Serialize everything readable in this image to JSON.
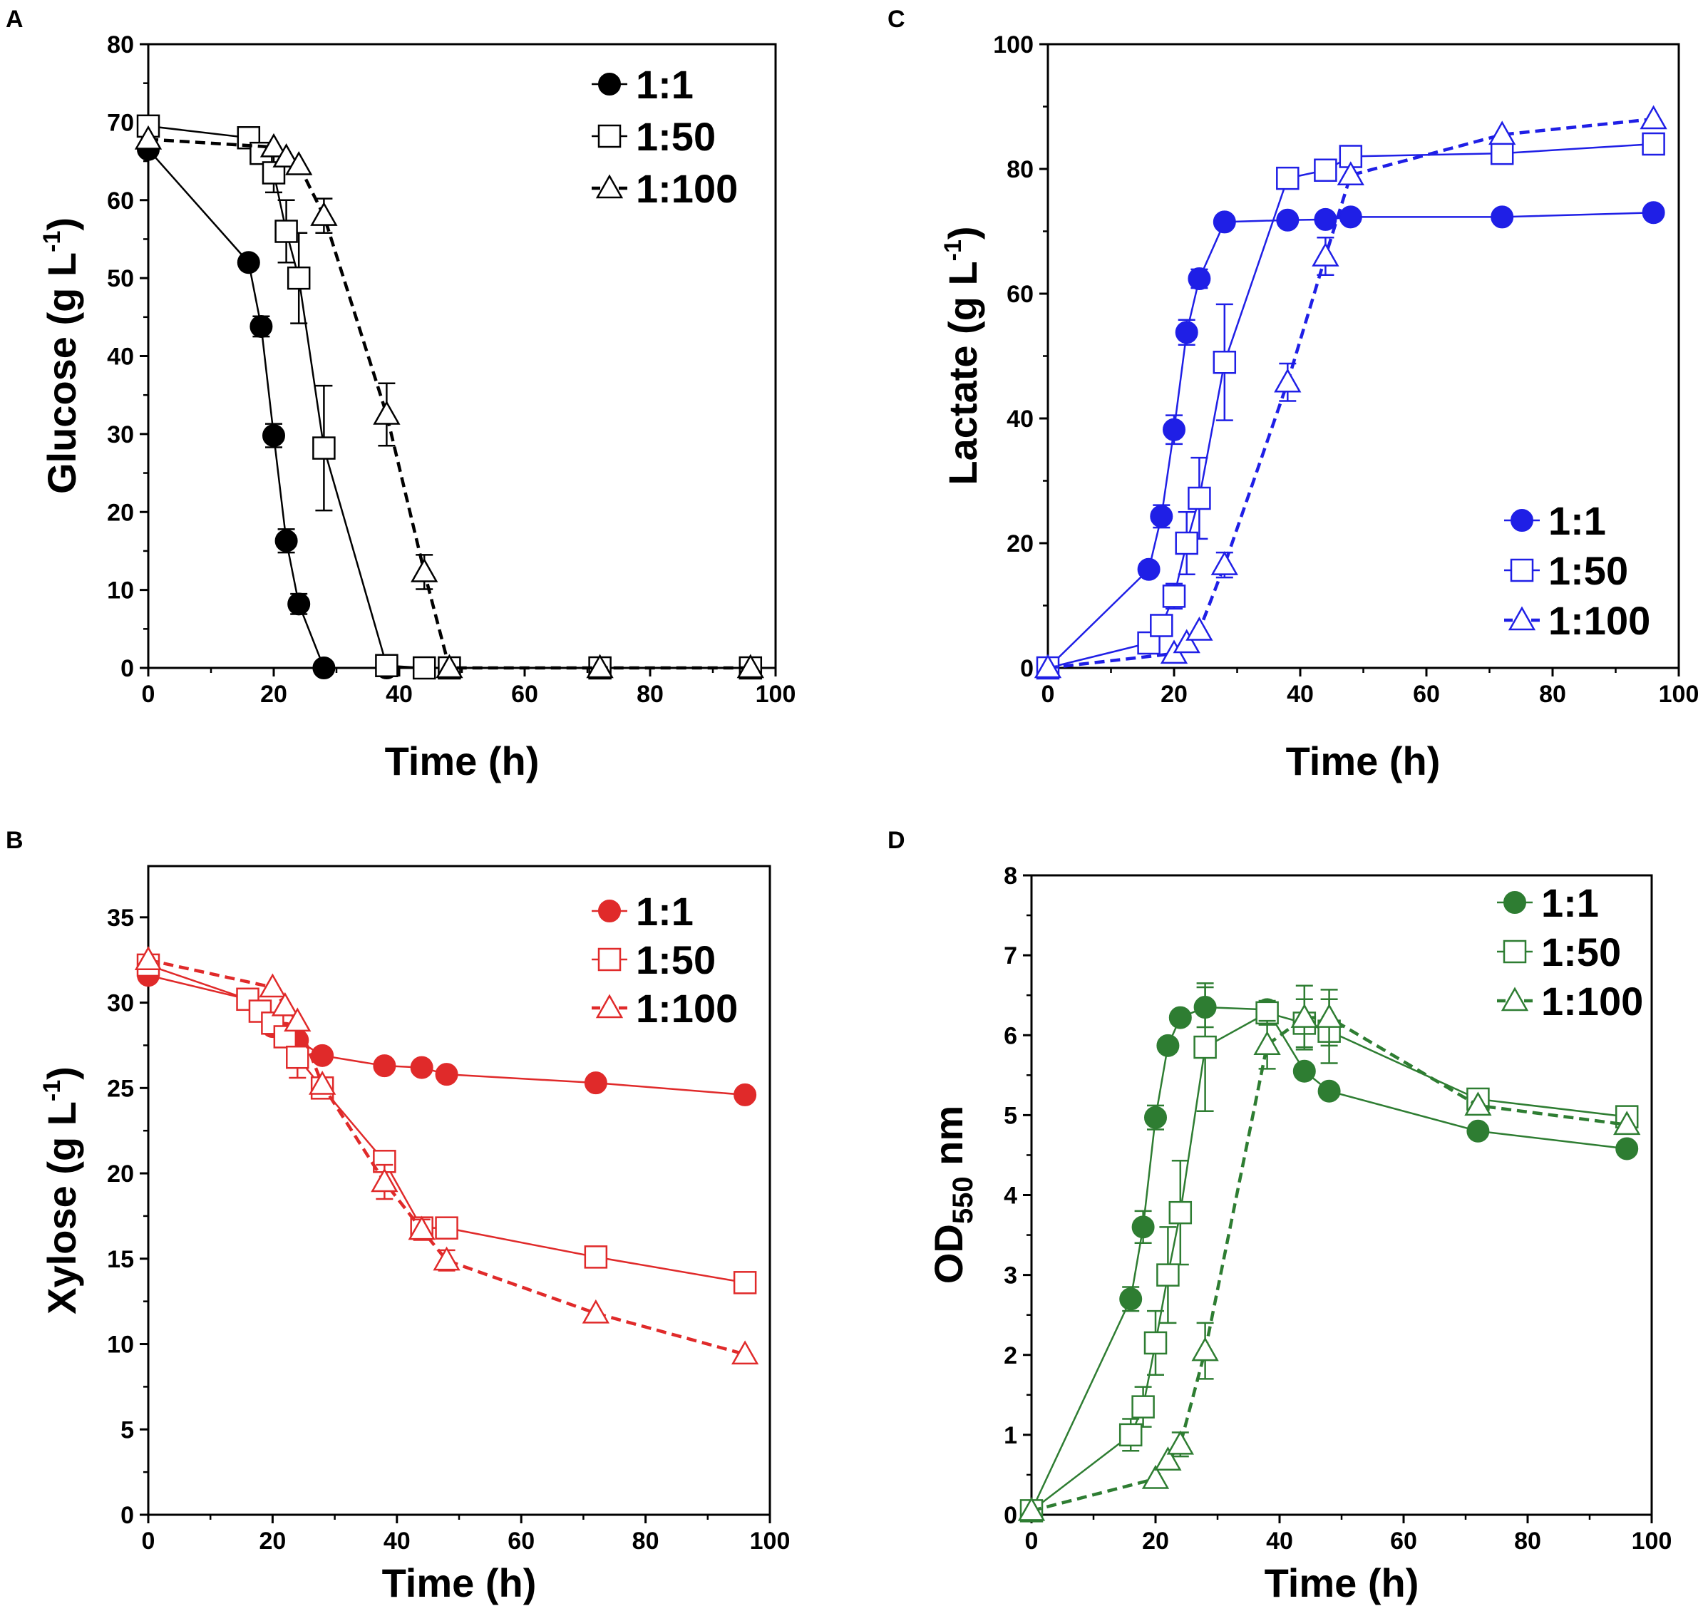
{
  "chart_data": [
    {
      "panel": "A",
      "type": "line",
      "xlabel": "Time (h)",
      "ylabel": "Glucose (g L",
      "ylabel_sup": "-1",
      "ylabel_end": ")",
      "xlim": [
        0,
        100
      ],
      "ylim": [
        0,
        80
      ],
      "xticks": [
        0,
        20,
        40,
        60,
        80,
        100
      ],
      "yticks": [
        0,
        10,
        20,
        30,
        40,
        50,
        60,
        70,
        80
      ],
      "color": "#000000",
      "legend_position": "top-right",
      "series": [
        {
          "name": "1:1",
          "marker": "circle",
          "dash": "solid",
          "x": [
            0,
            16,
            18,
            20,
            22,
            24,
            28,
            38,
            44,
            48,
            72,
            96
          ],
          "y": [
            66.5,
            52,
            43.8,
            29.8,
            16.3,
            8.2,
            0,
            0,
            0,
            0,
            0,
            0
          ],
          "err": [
            0,
            0,
            1.3,
            1.5,
            1.5,
            1.3,
            0,
            0,
            0,
            0,
            0,
            0
          ]
        },
        {
          "name": "1:50",
          "marker": "square",
          "dash": "solid",
          "x": [
            0,
            16,
            18,
            20,
            22,
            24,
            28,
            38,
            44,
            48,
            72,
            96
          ],
          "y": [
            69.5,
            68,
            66,
            63.5,
            56,
            50,
            28.2,
            0.3,
            0,
            0,
            0,
            0
          ],
          "err": [
            0,
            0,
            0,
            2.5,
            4,
            5.8,
            8,
            0,
            0,
            0,
            0,
            0
          ]
        },
        {
          "name": "1:100",
          "marker": "triangle",
          "dash": "dashed",
          "x": [
            0,
            20,
            22,
            24,
            28,
            38,
            44,
            48,
            72,
            96
          ],
          "y": [
            67.8,
            66.8,
            65.5,
            64.5,
            58,
            32.5,
            12.3,
            0,
            0,
            0
          ],
          "err": [
            0,
            0,
            0,
            0,
            2.2,
            4,
            2.2,
            0,
            0,
            0
          ]
        }
      ]
    },
    {
      "panel": "C",
      "type": "line",
      "xlabel": "Time (h)",
      "ylabel": "Lactate (g L",
      "ylabel_sup": "-1",
      "ylabel_end": ")",
      "xlim": [
        0,
        100
      ],
      "ylim": [
        0,
        100
      ],
      "xticks": [
        0,
        20,
        40,
        60,
        80,
        100
      ],
      "yticks": [
        0,
        20,
        40,
        60,
        80,
        100
      ],
      "color": "#1f1fe6",
      "legend_position": "bottom-right",
      "series": [
        {
          "name": "1:1",
          "marker": "circle",
          "dash": "solid",
          "x": [
            0,
            16,
            18,
            20,
            22,
            24,
            28,
            38,
            44,
            48,
            72,
            96
          ],
          "y": [
            0,
            15.8,
            24.3,
            38.2,
            53.8,
            62.4,
            71.5,
            71.8,
            71.9,
            72.3,
            72.3,
            73
          ],
          "err": [
            0,
            0,
            1.8,
            2.3,
            2,
            1.5,
            0,
            0,
            0,
            0,
            0,
            0
          ]
        },
        {
          "name": "1:50",
          "marker": "square",
          "dash": "solid",
          "x": [
            0,
            16,
            18,
            20,
            22,
            24,
            28,
            38,
            44,
            48,
            72,
            96
          ],
          "y": [
            0,
            4,
            6.8,
            11.5,
            20,
            27.2,
            49,
            78.5,
            79.8,
            82,
            82.5,
            84
          ],
          "err": [
            0,
            0,
            0,
            2,
            5,
            6.5,
            9.3,
            0,
            0,
            0,
            0,
            0
          ]
        },
        {
          "name": "1:100",
          "marker": "triangle",
          "dash": "dashed",
          "x": [
            0,
            20,
            22,
            24,
            28,
            38,
            44,
            48,
            72,
            96
          ],
          "y": [
            0,
            2.3,
            4,
            6,
            16.5,
            45.8,
            66,
            79,
            85.5,
            88
          ],
          "err": [
            0,
            0,
            0,
            0,
            2,
            3,
            3,
            0,
            0,
            0
          ]
        }
      ]
    },
    {
      "panel": "B",
      "type": "line",
      "xlabel": "Time (h)",
      "ylabel": "Xylose (g L",
      "ylabel_sup": "-1",
      "ylabel_end": ")",
      "xlim": [
        0,
        100
      ],
      "ylim": [
        0,
        38
      ],
      "xticks": [
        0,
        20,
        40,
        60,
        80,
        100
      ],
      "yticks": [
        0,
        5,
        10,
        15,
        20,
        25,
        30,
        35
      ],
      "color": "#e02a2a",
      "legend_position": "top-right",
      "series": [
        {
          "name": "1:1",
          "marker": "circle",
          "dash": "solid",
          "x": [
            0,
            16,
            18,
            20,
            22,
            24,
            28,
            38,
            44,
            48,
            72,
            96
          ],
          "y": [
            31.6,
            30.2,
            29.5,
            28.6,
            28.2,
            27.8,
            26.9,
            26.3,
            26.2,
            25.8,
            25.3,
            24.6
          ],
          "err": [
            0,
            0,
            0,
            0,
            0,
            0,
            0,
            0,
            0,
            0,
            0,
            0
          ]
        },
        {
          "name": "1:50",
          "marker": "square",
          "dash": "solid",
          "x": [
            0,
            16,
            18,
            20,
            22,
            24,
            28,
            38,
            44,
            48,
            72,
            96
          ],
          "y": [
            32.2,
            30.2,
            29.5,
            28.8,
            28,
            26.8,
            25,
            20.7,
            16.8,
            16.8,
            15.1,
            13.6
          ],
          "err": [
            0,
            0,
            0,
            0,
            0,
            1.2,
            0,
            0,
            0,
            0,
            0,
            0
          ]
        },
        {
          "name": "1:100",
          "marker": "triangle",
          "dash": "dashed",
          "x": [
            0,
            20,
            22,
            24,
            28,
            38,
            44,
            48,
            72,
            96
          ],
          "y": [
            32.5,
            30.9,
            29.8,
            28.9,
            25.2,
            19.5,
            16.7,
            14.9,
            11.8,
            9.4
          ],
          "err": [
            0,
            0,
            0,
            0,
            0,
            1,
            0.6,
            0.6,
            0,
            0
          ]
        }
      ]
    },
    {
      "panel": "D",
      "type": "line",
      "xlabel": "Time (h)",
      "ylabel": "OD",
      "ylabel_sub": "550",
      "ylabel_end": " nm",
      "xlim": [
        0,
        100
      ],
      "ylim": [
        0,
        8
      ],
      "xticks": [
        0,
        20,
        40,
        60,
        80,
        100
      ],
      "yticks": [
        0,
        1,
        2,
        3,
        4,
        5,
        6,
        7,
        8
      ],
      "color": "#2e7d32",
      "legend_position": "top-right",
      "series": [
        {
          "name": "1:1",
          "marker": "circle",
          "dash": "solid",
          "x": [
            0,
            16,
            18,
            20,
            22,
            24,
            28,
            38,
            44,
            48,
            72,
            96
          ],
          "y": [
            0.05,
            2.7,
            3.6,
            4.97,
            5.87,
            6.22,
            6.35,
            6.32,
            5.55,
            5.3,
            4.8,
            4.58
          ],
          "err": [
            0,
            0.15,
            0.2,
            0.15,
            0,
            0,
            0.25,
            0,
            0,
            0,
            0,
            0
          ]
        },
        {
          "name": "1:50",
          "marker": "square",
          "dash": "solid",
          "x": [
            0,
            16,
            18,
            20,
            22,
            24,
            28,
            38,
            44,
            48,
            72,
            96
          ],
          "y": [
            0.05,
            1,
            1.35,
            2.15,
            3,
            3.78,
            5.85,
            6.28,
            6.15,
            6.05,
            5.2,
            4.98
          ],
          "err": [
            0,
            0.2,
            0.25,
            0.4,
            0.6,
            0.65,
            0.8,
            0.15,
            0.3,
            0.4,
            0,
            0
          ]
        },
        {
          "name": "1:100",
          "marker": "triangle",
          "dash": "dashed",
          "x": [
            0,
            20,
            22,
            24,
            28,
            38,
            44,
            48,
            72,
            96
          ],
          "y": [
            0.05,
            0.45,
            0.68,
            0.88,
            2.05,
            5.88,
            6.22,
            6.22,
            5.12,
            4.88
          ],
          "err": [
            0,
            0,
            0,
            0.15,
            0.35,
            0.3,
            0.4,
            0.35,
            0,
            0
          ]
        }
      ]
    }
  ]
}
